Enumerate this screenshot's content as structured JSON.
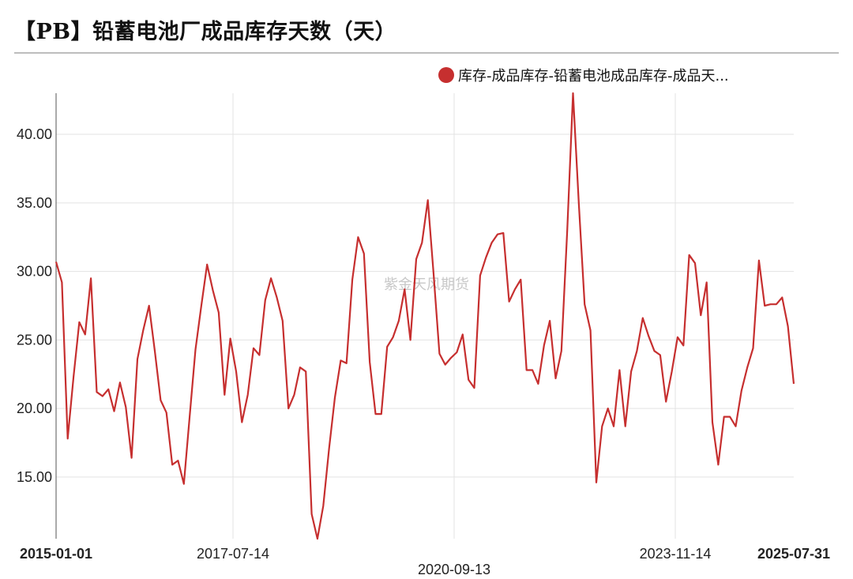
{
  "title": "【PB】铅蓄电池厂成品库存天数（天）",
  "watermark": "紫金天风期货",
  "colors": {
    "series": "#c62f2f",
    "grid": "#e3e3e3",
    "axis": "#555555"
  },
  "chart_data": {
    "type": "line",
    "x_ticks": [
      "2015-01-01",
      "2017-07-14",
      "2020-09-13",
      "2023-11-14",
      "2025-07-31"
    ],
    "y_ticks": [
      "15.00",
      "20.00",
      "25.00",
      "30.00",
      "35.00",
      "40.00"
    ],
    "ylim": [
      10.5,
      43
    ],
    "legend_position": "top-right",
    "series": [
      {
        "name": "库存-成品库存-铅蓄电池成品库存-成品天...",
        "values": [
          30.7,
          29.2,
          17.8,
          22.3,
          26.3,
          25.4,
          29.5,
          21.2,
          20.9,
          21.4,
          19.8,
          21.9,
          20.1,
          16.4,
          23.6,
          25.7,
          27.5,
          24.2,
          20.6,
          19.7,
          15.9,
          16.2,
          14.5,
          19.4,
          24.3,
          27.5,
          30.5,
          28.6,
          27.0,
          21.0,
          25.1,
          22.7,
          19.0,
          21.0,
          24.4,
          23.9,
          27.9,
          29.5,
          28.1,
          26.4,
          20.0,
          21.0,
          23.0,
          22.7,
          12.3,
          10.5,
          12.9,
          17.1,
          20.8,
          23.5,
          23.3,
          29.4,
          32.5,
          31.3,
          23.4,
          19.6,
          19.6,
          24.5,
          25.2,
          26.4,
          28.7,
          25.0,
          30.9,
          32.1,
          35.2,
          29.8,
          24.0,
          23.2,
          23.7,
          24.1,
          25.4,
          22.1,
          21.5,
          29.7,
          31.0,
          32.1,
          32.7,
          32.8,
          27.8,
          28.7,
          29.4,
          22.8,
          22.8,
          21.8,
          24.6,
          26.4,
          22.2,
          24.2,
          33.0,
          43.0,
          34.9,
          27.6,
          25.7,
          14.6,
          18.7,
          20.0,
          18.7,
          22.8,
          18.7,
          22.7,
          24.2,
          26.6,
          25.3,
          24.2,
          23.9,
          20.5,
          22.7,
          25.2,
          24.6,
          31.2,
          30.6,
          26.8,
          29.2,
          19.0,
          15.9,
          19.4,
          19.4,
          18.7,
          21.3,
          23.0,
          24.4,
          30.8,
          27.5,
          27.6,
          27.6,
          28.1,
          26.0,
          21.8
        ]
      }
    ]
  }
}
